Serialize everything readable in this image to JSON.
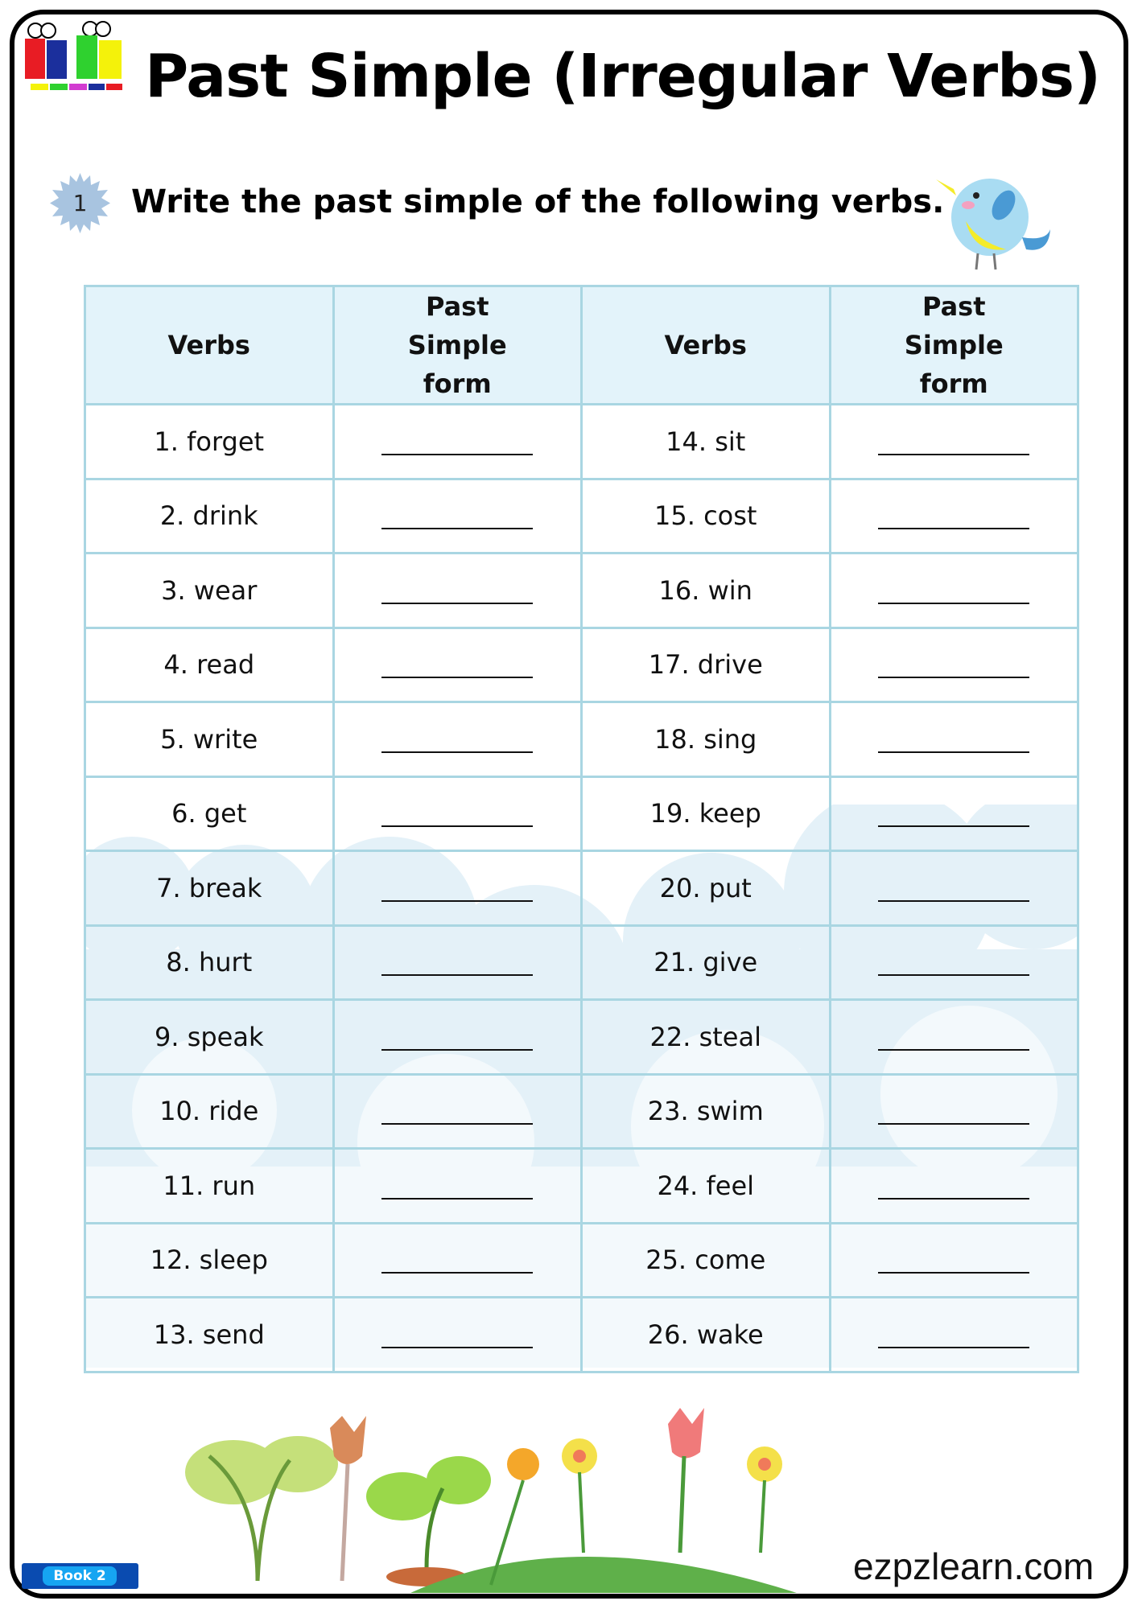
{
  "brand": {
    "logo_text": "EZPZ learn",
    "website": "ezpzlearn.com",
    "book_label": "Book 2"
  },
  "title": "Past Simple (Irregular Verbs)",
  "exercise": {
    "number": "1",
    "instruction": "Write the past simple of the following verbs."
  },
  "table": {
    "headers": [
      "Verbs",
      "Past Simple form",
      "Verbs",
      "Past Simple form"
    ],
    "rows": [
      [
        "1. forget",
        "14. sit"
      ],
      [
        "2. drink",
        "15. cost"
      ],
      [
        "3. wear",
        "16. win"
      ],
      [
        "4. read",
        "17. drive"
      ],
      [
        "5. write",
        "18. sing"
      ],
      [
        "6. get",
        "19. keep"
      ],
      [
        "7. break",
        "20. put"
      ],
      [
        "8. hurt",
        "21. give"
      ],
      [
        "9. speak",
        "22. steal"
      ],
      [
        "10. ride",
        "23. swim"
      ],
      [
        "11. run",
        "24. feel"
      ],
      [
        "12. sleep",
        "25. come"
      ],
      [
        "13. send",
        "26. wake"
      ]
    ]
  },
  "colors": {
    "table_border": "#a9d6e2",
    "header_bg": "#e2f2fa",
    "badge": "#a8c4e0",
    "book": "#0a4bb0"
  }
}
